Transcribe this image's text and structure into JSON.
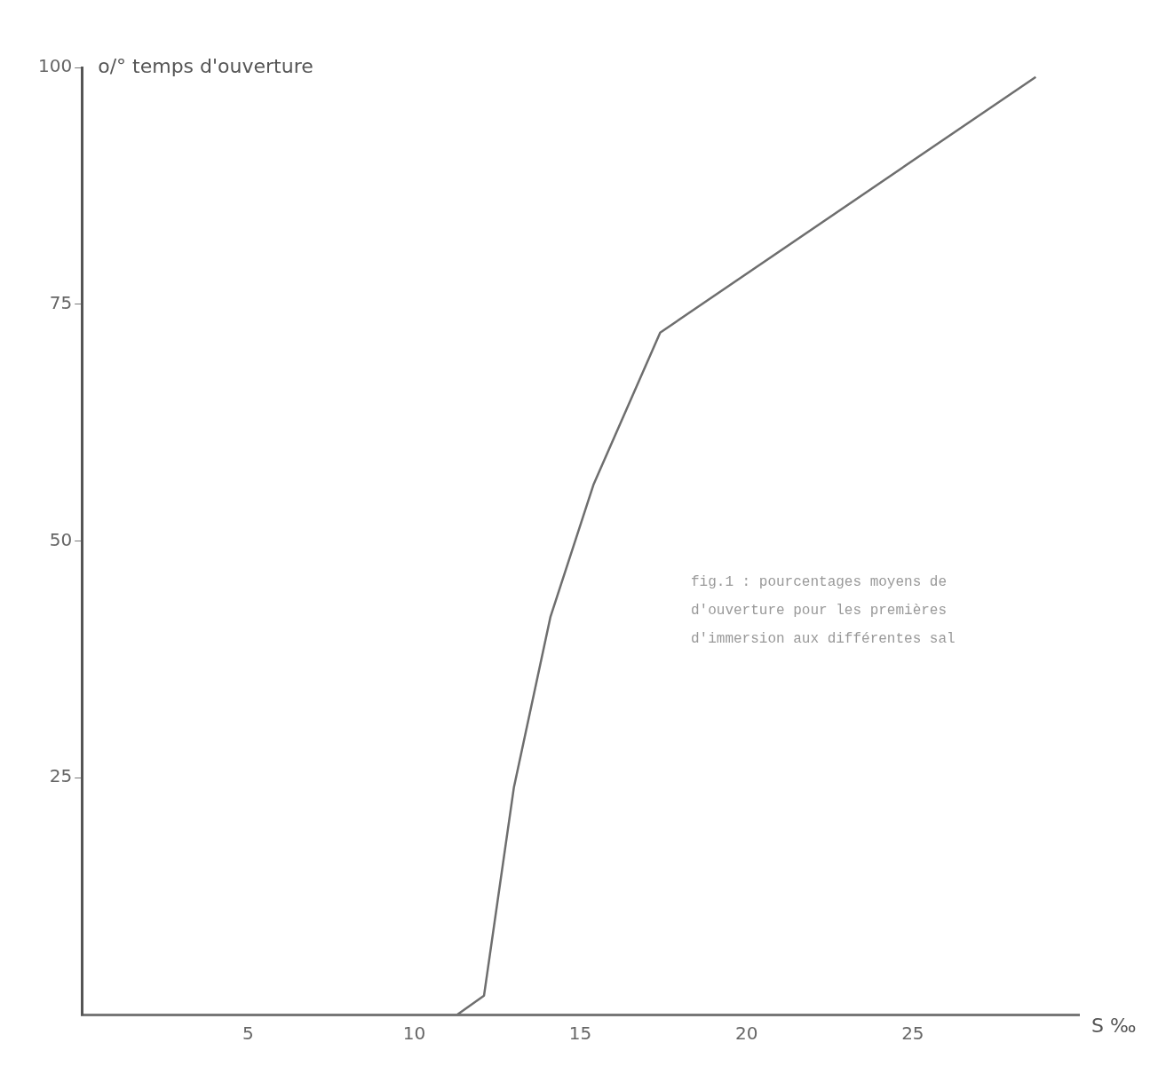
{
  "chart_data": {
    "type": "line",
    "ylabel": "o/° temps d'ouverture",
    "xlabel": "S ‰",
    "x": [
      11.3,
      12.1,
      13.0,
      14.1,
      15.4,
      17.4,
      28.7
    ],
    "series": [
      {
        "color": "#6e6e6e",
        "values": [
          0,
          2,
          24,
          42,
          56,
          72,
          99
        ]
      }
    ],
    "xlim": [
      0,
      30
    ],
    "xticks": [
      5,
      10,
      15,
      20,
      25
    ],
    "ylim": [
      0,
      100
    ],
    "yticks": [
      25,
      50,
      75,
      100
    ],
    "grid": false,
    "legend": false,
    "marker": "none",
    "line_style": "solid",
    "annotations": [
      "fig.1 :  pourcentages moyens de",
      "d'ouverture pour les premières",
      "d'immersion aux différentes sal"
    ]
  }
}
